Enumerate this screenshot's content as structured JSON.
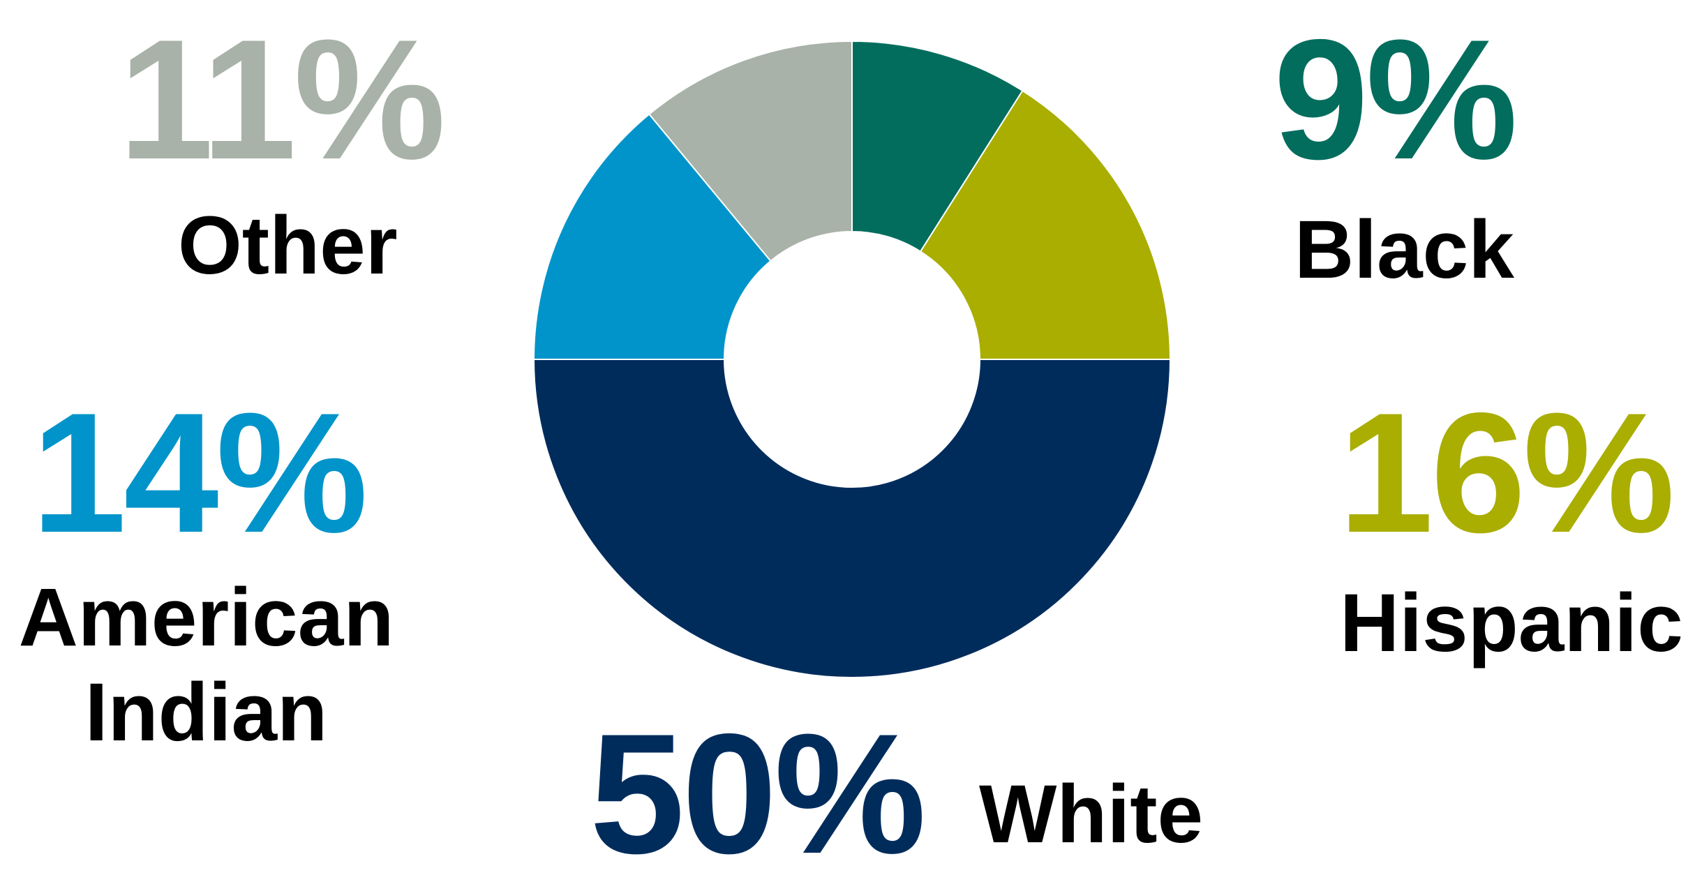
{
  "chart_data": {
    "type": "pie",
    "variant": "donut",
    "categories": [
      "Black",
      "Hispanic",
      "White",
      "American Indian",
      "Other"
    ],
    "values": [
      9,
      16,
      50,
      14,
      11
    ],
    "value_labels": [
      "9%",
      "16%",
      "50%",
      "14%",
      "11%"
    ],
    "colors": [
      "#036d5d",
      "#a9ae00",
      "#002c5c",
      "#0194ca",
      "#a8b2a8"
    ],
    "start_angle": "12 o'clock, clockwise",
    "legend": "none (direct labels)"
  },
  "labels": {
    "black": {
      "pct": "9%",
      "name": "Black"
    },
    "hispanic": {
      "pct": "16%",
      "name": "Hispanic"
    },
    "white": {
      "pct": "50%",
      "name": "White"
    },
    "american_indian": {
      "pct": "14%",
      "name_line1": "American",
      "name_line2": "Indian"
    },
    "other": {
      "pct": "11%",
      "name": "Other"
    }
  }
}
